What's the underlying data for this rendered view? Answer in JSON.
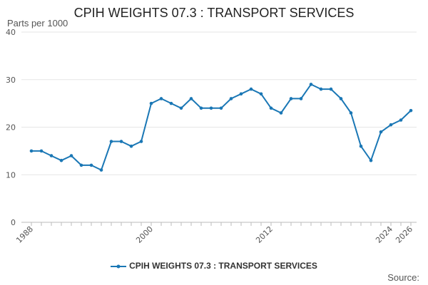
{
  "chart_data": {
    "type": "line",
    "title": "CPIH WEIGHTS 07.3 : TRANSPORT SERVICES",
    "unit_label": "Parts per 1000",
    "source_label": "Source:",
    "ylim": [
      0,
      40
    ],
    "yticks": [
      0,
      10,
      20,
      30,
      40
    ],
    "xlim": [
      1988,
      2026
    ],
    "xtick_labels": [
      "1988",
      "2000",
      "2012",
      "2024",
      "2026"
    ],
    "grid": true,
    "legend_position": "bottom",
    "color": "#1a77b5",
    "series": [
      {
        "name": "CPIH WEIGHTS 07.3 : TRANSPORT SERVICES",
        "x": [
          1988,
          1989,
          1990,
          1991,
          1992,
          1993,
          1994,
          1995,
          1996,
          1997,
          1998,
          1999,
          2000,
          2001,
          2002,
          2003,
          2004,
          2005,
          2006,
          2007,
          2008,
          2009,
          2010,
          2011,
          2012,
          2013,
          2014,
          2015,
          2016,
          2017,
          2018,
          2019,
          2020,
          2021,
          2022,
          2023,
          2024,
          2025,
          2026
        ],
        "values": [
          15,
          15,
          14,
          13,
          14,
          12,
          12,
          11,
          17,
          17,
          16,
          17,
          25,
          26,
          25,
          24,
          26,
          24,
          24,
          24,
          26,
          27,
          28,
          27,
          24,
          23,
          26,
          26,
          29,
          28,
          28,
          26,
          23,
          16,
          13,
          19,
          20.5,
          21.5,
          23.5
        ]
      }
    ]
  }
}
